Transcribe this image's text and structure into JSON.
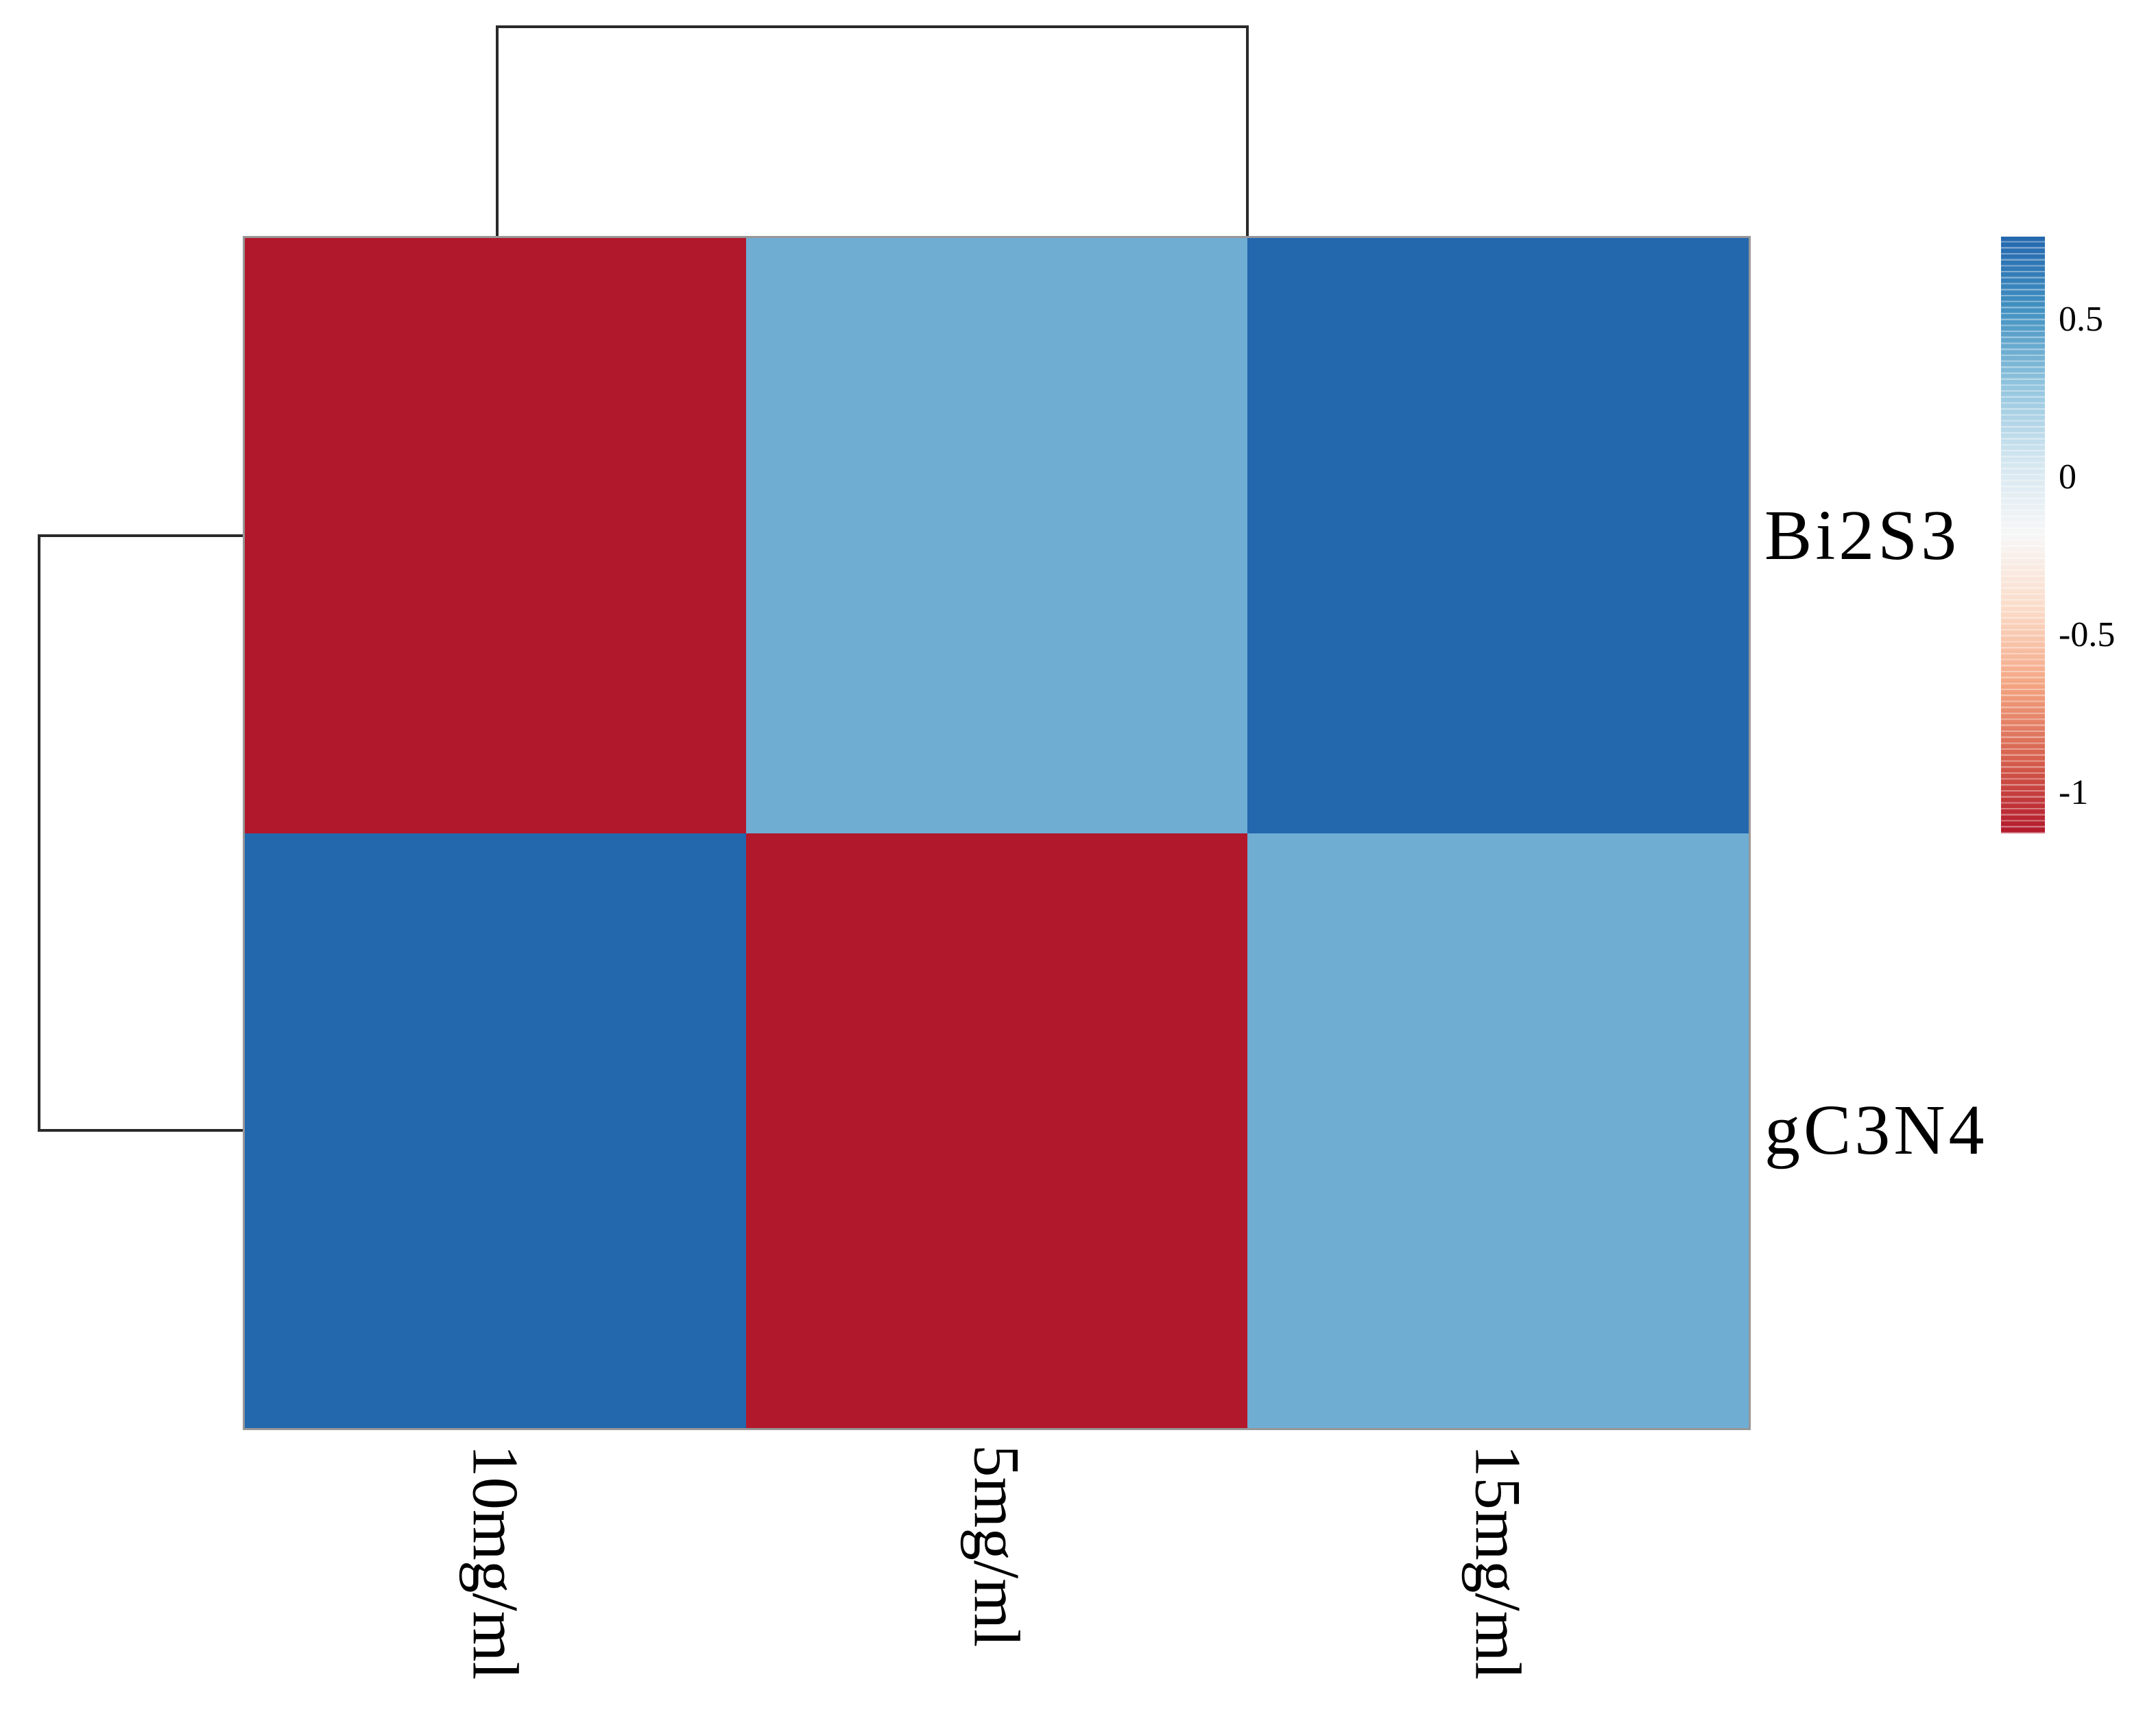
{
  "figure": {
    "background": "#ffffff",
    "border_color": "#979797",
    "dendrogram_color": "#2a2a2a"
  },
  "chart_data": {
    "type": "heatmap",
    "title": "",
    "xlabel": "",
    "ylabel": "",
    "rows": [
      "Bi2S3",
      "gC3N4"
    ],
    "columns": [
      "10mg/ml",
      "5mg/ml",
      "15mg/ml"
    ],
    "values": [
      [
        -1.13,
        0.38,
        0.75
      ],
      [
        0.75,
        -1.13,
        0.38
      ]
    ],
    "cell_colors": [
      [
        "#b2182b",
        "#6fadd3",
        "#2367ad"
      ],
      [
        "#2367ad",
        "#b2182b",
        "#6fadd3"
      ]
    ],
    "scale": "row-zscore",
    "colormap": "RdBu",
    "grid": false,
    "clustering": {
      "top_dendrogram": "columns",
      "left_dendrogram": "rows",
      "column_merge_order": [
        [
          "5mg/ml",
          "15mg/ml"
        ],
        "10mg/ml"
      ],
      "row_merge_order": [
        [
          "Bi2S3",
          "gC3N4"
        ]
      ]
    },
    "legend": {
      "position": "right",
      "ticks": [
        "0.5",
        "0",
        "-0.5",
        "-1"
      ],
      "tick_values": [
        0.5,
        0,
        -0.5,
        -1
      ],
      "range_min": -1.13,
      "range_max": 0.76,
      "gradient_stops": [
        {
          "pos": 0,
          "color": "#2467ae"
        },
        {
          "pos": 12.5,
          "color": "#4392c2"
        },
        {
          "pos": 25,
          "color": "#92c5de"
        },
        {
          "pos": 37.5,
          "color": "#d3e6f0"
        },
        {
          "pos": 50,
          "color": "#f7f7f7"
        },
        {
          "pos": 62.5,
          "color": "#fbdbc8"
        },
        {
          "pos": 75,
          "color": "#f4a582"
        },
        {
          "pos": 87.5,
          "color": "#d6604d"
        },
        {
          "pos": 100,
          "color": "#b2182b"
        }
      ]
    }
  }
}
